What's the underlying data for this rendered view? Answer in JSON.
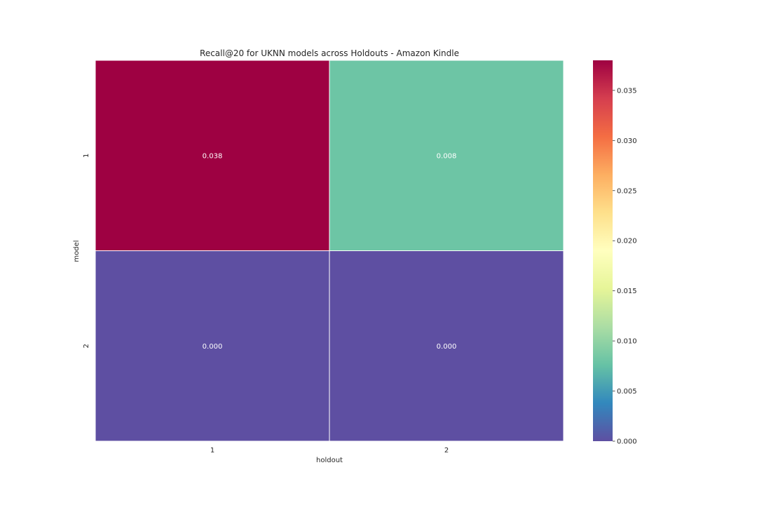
{
  "chart_data": {
    "type": "heatmap",
    "title": "Recall@20 for UKNN models across Holdouts - Amazon Kindle",
    "xlabel": "holdout",
    "ylabel": "model",
    "x_categories": [
      "1",
      "2"
    ],
    "y_categories": [
      "1",
      "2"
    ],
    "values": [
      [
        0.038,
        0.008
      ],
      [
        0.0,
        0.0
      ]
    ],
    "cell_labels": [
      [
        "0.038",
        "0.008"
      ],
      [
        "0.000",
        "0.000"
      ]
    ],
    "colorbar": {
      "colormap": "Spectral_r",
      "range": [
        0,
        0.038
      ],
      "ticks": [
        0.0,
        0.005,
        0.01,
        0.015,
        0.02,
        0.025,
        0.03,
        0.035
      ],
      "tick_labels": [
        "0.000",
        "0.005",
        "0.010",
        "0.015",
        "0.020",
        "0.025",
        "0.030",
        "0.035"
      ]
    },
    "colors": {
      "high": "#9e0142",
      "low": "#5e4fa2",
      "cell_text_light": "#ffffff",
      "cell_text_dark": "#262626"
    }
  }
}
